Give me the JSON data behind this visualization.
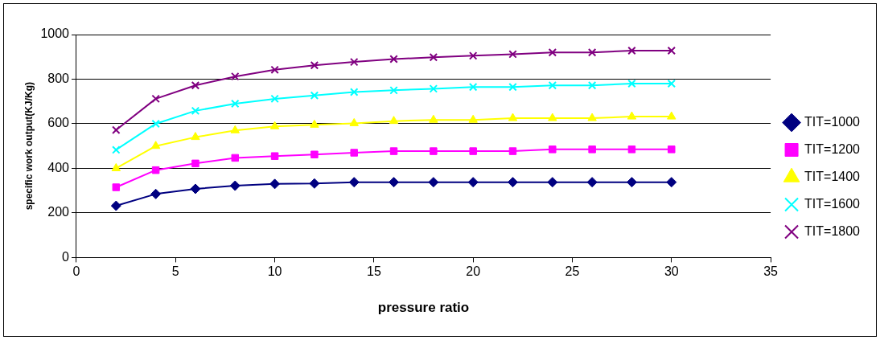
{
  "chart_data": {
    "type": "line",
    "xlabel": "pressure ratio",
    "ylabel": "specific work output(KJ/Kg)",
    "x": [
      2,
      4,
      6,
      8,
      10,
      12,
      14,
      16,
      18,
      20,
      22,
      24,
      26,
      28,
      30
    ],
    "xlim": [
      0,
      35
    ],
    "xticks": [
      0,
      5,
      10,
      15,
      20,
      25,
      30,
      35
    ],
    "ylim": [
      0,
      1000
    ],
    "yticks": [
      0,
      200,
      400,
      600,
      800,
      1000
    ],
    "grid": "y",
    "legend": "right",
    "line_style": "solid",
    "series": [
      {
        "name": "TIT=1000",
        "color": "#000080",
        "marker": "diamond",
        "values": [
          232,
          285,
          308,
          322,
          330,
          332,
          338,
          338,
          338,
          338,
          338,
          338,
          338,
          338,
          338
        ]
      },
      {
        "name": "TIT=1200",
        "color": "#ff00ff",
        "marker": "square",
        "values": [
          315,
          392,
          422,
          447,
          455,
          462,
          470,
          477,
          477,
          477,
          477,
          485,
          485,
          485,
          485
        ]
      },
      {
        "name": "TIT=1400",
        "color": "#ffff00",
        "marker": "triangle",
        "values": [
          400,
          500,
          540,
          570,
          588,
          595,
          602,
          612,
          617,
          617,
          625,
          625,
          625,
          632,
          632
        ]
      },
      {
        "name": "TIT=1600",
        "color": "#00ffff",
        "marker": "cross",
        "values": [
          483,
          600,
          658,
          690,
          712,
          727,
          742,
          750,
          757,
          765,
          765,
          772,
          772,
          780,
          780
        ]
      },
      {
        "name": "TIT=1800",
        "color": "#800080",
        "marker": "cross",
        "values": [
          572,
          712,
          772,
          812,
          842,
          862,
          877,
          890,
          898,
          905,
          912,
          920,
          920,
          928,
          928
        ]
      }
    ]
  }
}
